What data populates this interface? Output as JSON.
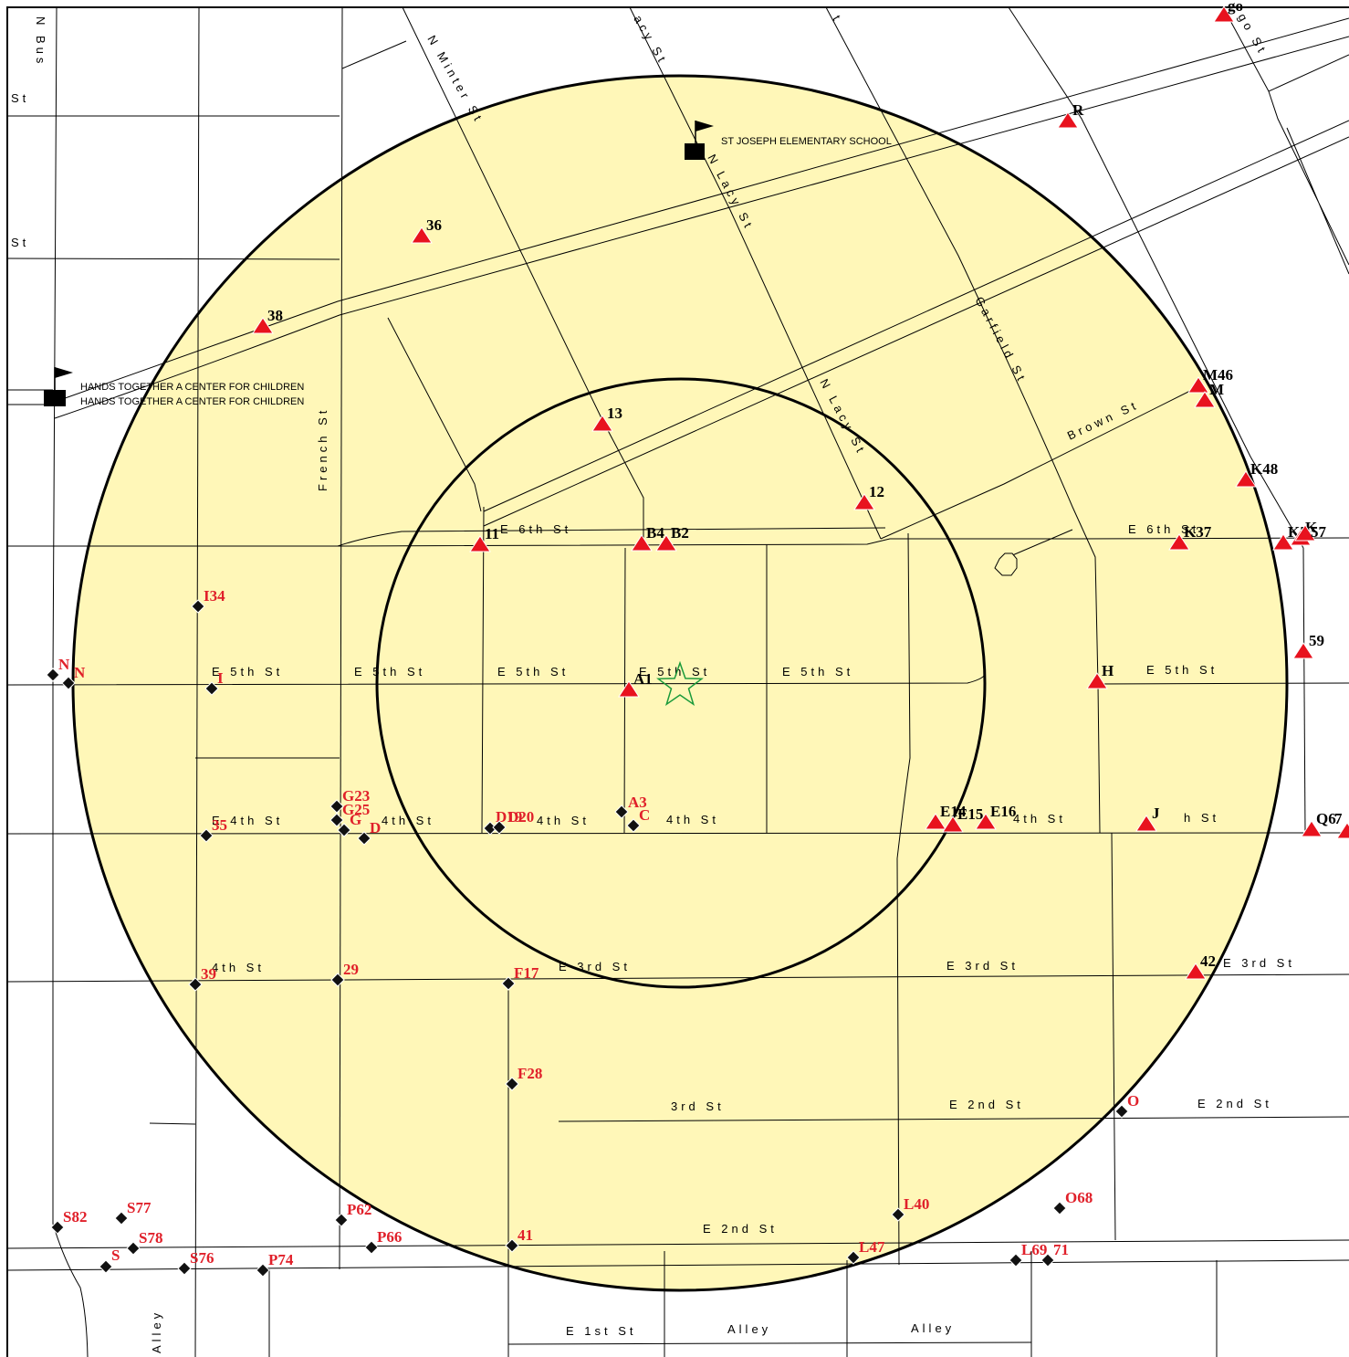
{
  "colors": {
    "buffer_fill": "#fff7b8",
    "triangle": "#e8121e",
    "diamond": "#111111",
    "label_red": "#e0202a",
    "label_black": "#000000",
    "star": "#1a9a3a"
  },
  "icons": {
    "triangle": "red-triangle-marker",
    "diamond": "black-diamond-marker",
    "star": "green-star-center",
    "flag": "flag-icon",
    "school": "school-square-icon"
  },
  "streets": [
    "N Bus",
    "St",
    "St",
    "N Minter St",
    "acy St",
    "t",
    "go St",
    "N Lacy St",
    "N Lacy St",
    "Garfield St",
    "Brown St",
    "French St",
    "E 6th St",
    "E 6th St",
    "E 5th St",
    "E 5th St",
    "E 5th St",
    "E 5th St",
    "E 5th St",
    "E 5th St",
    "E 4th St",
    "4th St",
    "4th St",
    "4th St",
    "4th St",
    "h St",
    "4th St",
    "E 3rd St",
    "E 3rd St",
    "E 3rd St",
    "3rd St",
    "E 2nd St",
    "E 2nd St",
    "E 2nd St",
    "E 1st St",
    "Alley",
    "Alley",
    "Alley",
    "ley"
  ],
  "schools": [
    "ST JOSEPH ELEMENTARY SCHOOL",
    "HANDS TOGETHER A CENTER FOR CHILDREN",
    "HANDS TOGETHER A CENTER FOR CHILDREN"
  ],
  "triangle_markers": [
    "R",
    "36",
    "38",
    "13",
    "12",
    "11",
    "B4",
    "B2",
    "A1",
    "M46",
    "M",
    "K48",
    "K37",
    "K5",
    "K",
    "57",
    "59",
    "H",
    "E14",
    "E15",
    "E16",
    "J",
    "Q6",
    "7",
    "42",
    "go"
  ],
  "diamond_markers": [
    "I34",
    "N",
    "N",
    "I",
    "G23",
    "G25",
    "G",
    "D",
    "35",
    "D19",
    "D20",
    "A3",
    "C",
    "39",
    "29",
    "F17",
    "F28",
    "O",
    "L40",
    "O68",
    "S82",
    "S77",
    "S78",
    "S",
    "S76",
    "P74",
    "P62",
    "P66",
    "41",
    "L47",
    "L69",
    "71"
  ]
}
